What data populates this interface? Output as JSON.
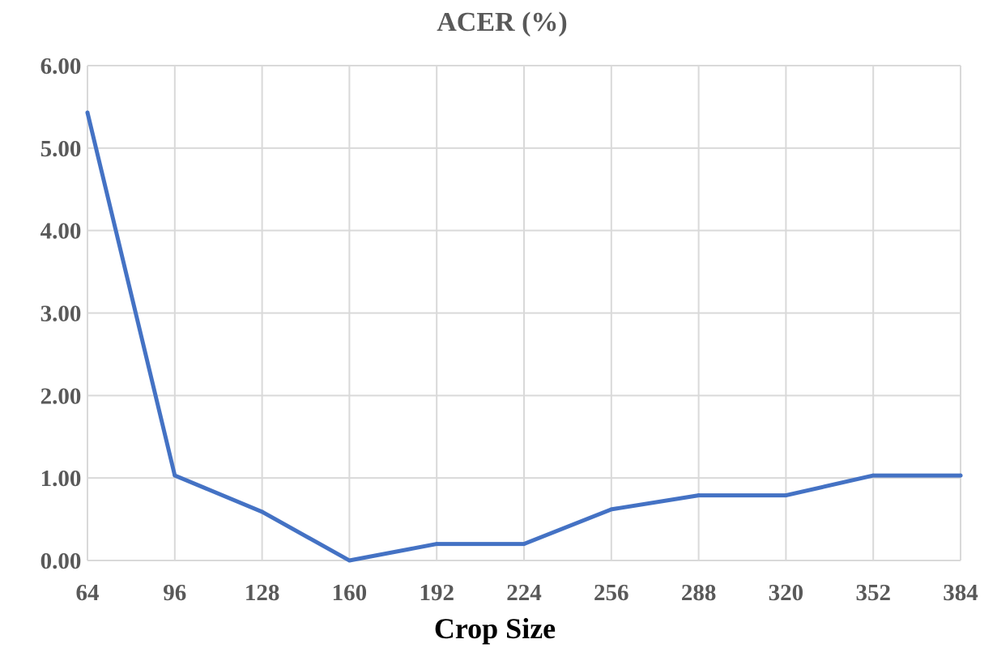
{
  "chart_data": {
    "type": "line",
    "title": "ACER (%)",
    "xlabel": "Crop Size",
    "ylabel": "",
    "categories": [
      "64",
      "96",
      "128",
      "160",
      "192",
      "224",
      "256",
      "288",
      "320",
      "352",
      "384"
    ],
    "series": [
      {
        "values": [
          5.43,
          1.03,
          0.59,
          0.0,
          0.2,
          0.2,
          0.62,
          0.79,
          0.79,
          1.03,
          1.03
        ],
        "color": "#4472c4"
      }
    ],
    "ylim": [
      0,
      6
    ],
    "yticks": [
      "0.00",
      "1.00",
      "2.00",
      "3.00",
      "4.00",
      "5.00",
      "6.00"
    ],
    "grid": true,
    "legend": "none"
  }
}
